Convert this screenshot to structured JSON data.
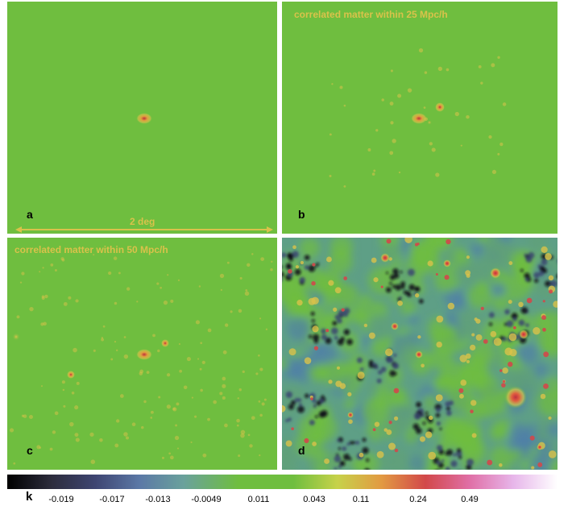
{
  "panels": {
    "a": {
      "label": "a",
      "title": ""
    },
    "b": {
      "label": "b",
      "title": "correlated matter within 25 Mpc/h"
    },
    "c": {
      "label": "c",
      "title": "correlated matter within 50 Mpc/h"
    },
    "d": {
      "label": "d",
      "title": ""
    }
  },
  "scale_bar": {
    "text": "2 deg"
  },
  "colorbar": {
    "label": "k",
    "ticks": [
      "-0.019",
      "-0.017",
      "-0.013",
      "-0.0049",
      "0.011",
      "0.043",
      "0.11",
      "0.24",
      "0.49"
    ]
  },
  "colors": {
    "background_green": "#6fbe3f",
    "halo_yellow": "#d9c24a",
    "halo_red": "#d2484a",
    "void_dark": "#101018"
  }
}
